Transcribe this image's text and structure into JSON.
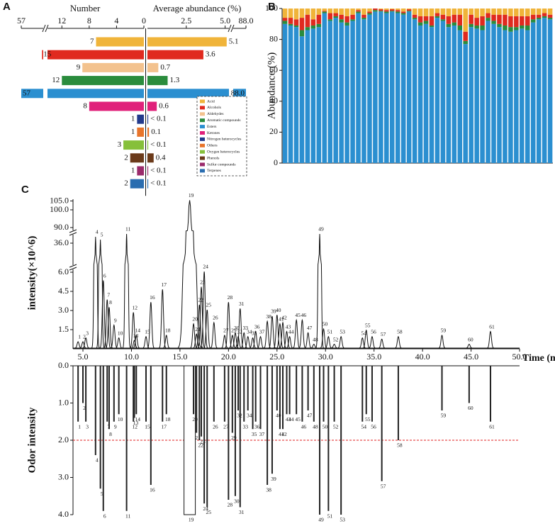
{
  "chart_data": [
    {
      "type": "divergingbar",
      "panel": "A",
      "left_label": "Number",
      "right_label": "Average abundance (%)",
      "categories": [
        "Acid",
        "Alcohols",
        "Aldehydes",
        "Aromatic compounds",
        "Esters",
        "Ketones",
        "Nitrogen heterocycles",
        "Others",
        "Oxygen heterocycles",
        "Phenols",
        "Sulfur compounds",
        "Terpenes"
      ],
      "colors": [
        "#f0b43a",
        "#e02a1f",
        "#f3c28e",
        "#2a8c3d",
        "#2b8fd0",
        "#e0207a",
        "#233a8c",
        "#e8742a",
        "#86c03a",
        "#6b3a1a",
        "#9b2a6b",
        "#2a6db0"
      ],
      "number": [
        7,
        15,
        9,
        12,
        57,
        8,
        1,
        1,
        3,
        2,
        1,
        2
      ],
      "abundance": [
        5.1,
        3.6,
        0.7,
        1.3,
        88.0,
        0.6,
        0.05,
        0.1,
        0.05,
        0.4,
        0.05,
        0.05
      ],
      "value_labels": [
        "5.1",
        "3.6",
        "0.7",
        "1.3",
        "88.0",
        "0.6",
        "< 0.1",
        "0.1",
        "< 0.1",
        "0.4",
        "< 0.1",
        "< 0.1"
      ],
      "left_xlim": [
        0,
        14
      ],
      "left_break_max": 57,
      "left_xticks": [
        57,
        12,
        8,
        4,
        0
      ],
      "right_xlim": [
        0,
        5.2
      ],
      "right_break_max": 88,
      "right_xticks": [
        2.5,
        {
          "value": 5,
          "label": "5.0"
        },
        {
          "value": 88,
          "label": "88.0"
        }
      ]
    },
    {
      "type": "stackedbar",
      "panel": "B",
      "ylabel": "Abundance (%)",
      "categories": [
        null,
        null,
        null,
        null,
        null,
        null,
        null,
        null,
        null,
        null,
        null,
        null,
        null,
        null,
        null,
        null,
        null,
        null,
        null,
        null,
        null,
        null,
        null,
        null,
        null,
        null,
        null,
        null,
        null,
        null,
        null,
        null,
        null,
        null,
        null,
        null,
        null,
        null,
        null,
        null,
        null,
        null,
        null,
        null,
        null,
        null,
        null,
        null
      ],
      "ylim": [
        0,
        100
      ],
      "yticks": [
        0,
        20,
        40,
        60,
        80,
        100
      ],
      "series": [
        {
          "name": "Esters",
          "color": "#2b8fd0",
          "values": [
            90,
            89,
            88,
            82,
            86,
            87,
            88,
            97,
            92,
            94,
            91,
            89,
            92,
            97,
            93,
            96,
            98,
            98,
            97,
            98,
            97,
            96,
            98,
            93,
            89,
            90,
            88,
            94,
            92,
            88,
            89,
            86,
            77,
            88,
            87,
            86,
            92,
            90,
            88,
            86,
            85,
            86,
            87,
            86,
            91,
            93,
            94,
            93
          ]
        },
        {
          "name": "Aromatic compounds",
          "color": "#2a8c3d",
          "values": [
            2,
            1,
            1,
            4,
            2,
            2,
            2,
            1,
            1,
            1,
            2,
            2,
            1,
            1,
            1,
            1,
            1,
            0.5,
            1,
            0.5,
            1,
            1,
            0.5,
            1,
            2,
            2,
            1,
            1,
            1,
            2,
            2,
            3,
            2,
            2,
            2,
            3,
            2,
            2,
            2,
            3,
            3,
            2,
            2,
            3,
            2,
            1,
            1,
            1
          ]
        },
        {
          "name": "Alcohols",
          "color": "#e02a1f",
          "values": [
            2,
            4,
            4,
            8,
            8,
            4,
            6,
            0.5,
            4,
            2,
            3,
            4,
            3,
            1,
            2,
            1,
            1,
            1,
            1,
            1,
            1,
            1,
            1,
            2,
            4,
            3,
            6,
            2,
            3,
            5,
            5,
            7,
            6,
            6,
            5,
            6,
            3,
            4,
            6,
            7,
            7,
            7,
            6,
            6,
            3,
            2,
            2,
            2
          ]
        },
        {
          "name": "Acid",
          "color": "#f0b43a",
          "values": [
            6,
            6,
            7,
            6,
            4,
            7,
            4,
            1.5,
            3,
            3,
            4,
            5,
            4,
            1,
            4,
            2,
            0,
            0.5,
            1,
            0.5,
            1,
            2,
            0.5,
            4,
            5,
            5,
            5,
            3,
            4,
            5,
            4,
            4,
            15,
            4,
            6,
            5,
            3,
            4,
            4,
            4,
            5,
            5,
            5,
            5,
            4,
            4,
            3,
            4
          ]
        }
      ]
    },
    {
      "type": "chromatogram",
      "panel": "C",
      "ylabel": "intensity(×10^6)",
      "xlabel": "Time (min)",
      "odor_ylabel": "Odor intensity",
      "xlim": [
        4,
        50
      ],
      "xticks": [
        {
          "value": 5,
          "label": "5.0"
        },
        {
          "value": 10,
          "label": "10.0"
        },
        {
          "value": 15,
          "label": "15.0"
        },
        {
          "value": 20,
          "label": "20.0"
        },
        {
          "value": 25,
          "label": "25.0"
        },
        {
          "value": 30,
          "label": "30.0"
        },
        {
          "value": 35,
          "label": "35.0"
        },
        {
          "value": 40,
          "label": "40.0"
        },
        {
          "value": 45,
          "label": "45.0"
        },
        {
          "value": 50,
          "label": "50.0"
        }
      ],
      "ysegments": [
        [
          0,
          6.5
        ],
        [
          34,
          38
        ],
        [
          88,
          106
        ]
      ],
      "yticks": [
        1.5,
        {
          "value": 3,
          "label": "3.0"
        },
        4.5,
        {
          "value": 6,
          "label": "6.0"
        },
        {
          "value": 36,
          "label": "36.0"
        },
        {
          "value": 90,
          "label": "90.0"
        },
        {
          "value": 100,
          "label": "100.0"
        },
        {
          "value": 105,
          "label": "105.0"
        }
      ],
      "odor_ylim": [
        0,
        4
      ],
      "odor_yticks": [
        {
          "value": 0,
          "label": "0.0"
        },
        {
          "value": 1,
          "label": "1.0"
        },
        {
          "value": 2,
          "label": "2.0"
        },
        {
          "value": 3,
          "label": "3.0"
        },
        {
          "value": 4,
          "label": "4.0"
        }
      ],
      "threshold": 2,
      "threshold_color": "#e02020",
      "peaks": {
        "labels": [
          "1",
          "2",
          "3",
          "4",
          "5",
          "6",
          "7",
          "8",
          "9",
          "10",
          "11",
          "12",
          "13",
          "14",
          "15",
          "16",
          "17",
          "18",
          "19",
          "20",
          "21",
          "22",
          "23",
          "24",
          "25",
          "26",
          "27",
          "28",
          "29",
          "30",
          "31",
          "32",
          "33",
          "34",
          "35",
          "36",
          "37",
          "38",
          "39",
          "40",
          "41",
          "42",
          "43",
          "44",
          "45",
          "46",
          "47",
          "48",
          "49",
          "50",
          "51",
          "52",
          "53",
          "54",
          "55",
          "56",
          "57",
          "58",
          "59",
          "60",
          "61"
        ],
        "time": [
          4.5,
          5.0,
          5.3,
          6.3,
          6.8,
          7.1,
          7.5,
          7.7,
          8.2,
          8.7,
          9.5,
          10.2,
          10.3,
          10.5,
          11.5,
          12.0,
          13.2,
          13.6,
          16.0,
          16.4,
          16.7,
          17.0,
          17.2,
          17.5,
          17.8,
          18.5,
          19.6,
          20.0,
          20.4,
          20.7,
          21.2,
          21.0,
          21.6,
          22.0,
          22.5,
          22.8,
          23.3,
          24.0,
          24.5,
          25.0,
          25.3,
          25.6,
          26.0,
          26.3,
          27.0,
          27.6,
          28.2,
          28.8,
          29.4,
          29.8,
          30.3,
          30.9,
          31.6,
          33.8,
          34.2,
          34.8,
          35.8,
          37.5,
          42.0,
          44.8,
          47.0
        ],
        "intensity": [
          0.5,
          0.5,
          0.8,
          37.0,
          36.5,
          5.3,
          3.8,
          3.2,
          1.8,
          0.8,
          37.5,
          2.8,
          0.6,
          1.0,
          0.9,
          3.6,
          4.6,
          1.0,
          105,
          1.9,
          1.1,
          3.4,
          4.8,
          6.0,
          3.0,
          2.0,
          1.0,
          3.6,
          1.0,
          1.2,
          3.1,
          0.9,
          1.2,
          0.9,
          0.8,
          1.3,
          0.9,
          2.1,
          2.5,
          2.6,
          1.9,
          2.0,
          1.3,
          0.9,
          2.2,
          2.2,
          1.2,
          0.3,
          37.5,
          1.5,
          0.9,
          0.3,
          0.9,
          0.8,
          1.4,
          0.9,
          0.7,
          0.9,
          1.0,
          0.3,
          1.3
        ],
        "odor": [
          1.5,
          1.0,
          1.5,
          2.4,
          3.3,
          3.9,
          1.5,
          1.7,
          1.5,
          1.3,
          3.9,
          1.5,
          1.4,
          1.3,
          1.5,
          3.2,
          1.5,
          1.3,
          4.0,
          1.3,
          1.8,
          2.0,
          1.9,
          3.7,
          3.8,
          1.5,
          1.5,
          3.6,
          1.8,
          3.5,
          3.8,
          1.2,
          1.5,
          1.2,
          1.7,
          1.5,
          1.7,
          3.2,
          2.9,
          1.2,
          1.7,
          1.7,
          1.3,
          1.3,
          1.3,
          1.5,
          1.2,
          1.5,
          4.0,
          1.5,
          3.9,
          1.5,
          4.0,
          1.5,
          1.3,
          1.5,
          3.1,
          2.0,
          1.2,
          1.0,
          1.5
        ]
      }
    }
  ]
}
